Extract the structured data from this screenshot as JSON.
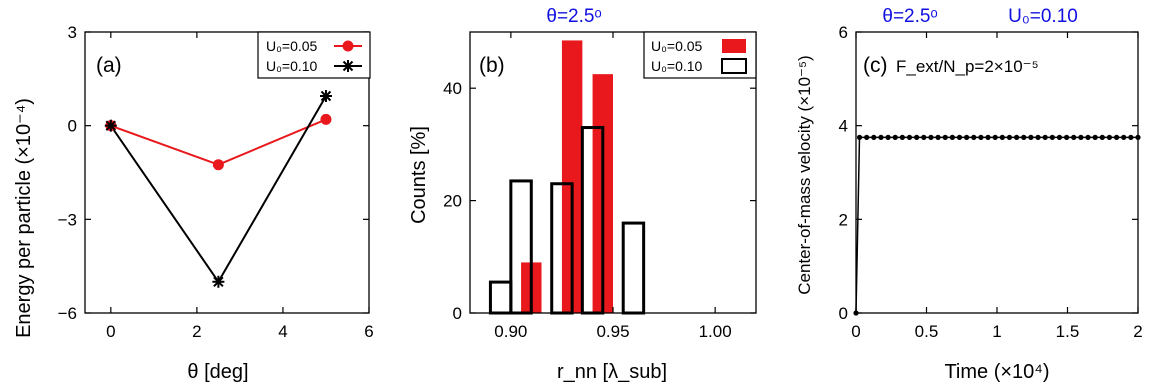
{
  "chart_data": [
    {
      "type": "line",
      "panel_label": "(a)",
      "xlabel": "θ [deg]",
      "ylabel": "Energy per particle (×10⁻⁴)",
      "xlim": [
        -0.6,
        6
      ],
      "ylim": [
        -6,
        3
      ],
      "xticks": [
        "0",
        "2",
        "4",
        "6"
      ],
      "yticks": [
        "−6",
        "−3",
        "0",
        "3"
      ],
      "legend": "top-right",
      "series": [
        {
          "name": "U₀=0.05",
          "color": "#e8181c",
          "marker": "circle",
          "x": [
            0,
            2.5,
            5
          ],
          "y": [
            0,
            -1.25,
            0.2
          ]
        },
        {
          "name": "U₀=0.10",
          "color": "#000000",
          "marker": "star",
          "x": [
            0,
            2.5,
            5
          ],
          "y": [
            0,
            -5.0,
            0.95
          ]
        }
      ]
    },
    {
      "type": "bar",
      "panel_label": "(b)",
      "title": "θ=2.5ᵒ",
      "xlabel": "r_nn [λ_sub]",
      "ylabel": "Counts [%]",
      "xlim": [
        0.88,
        1.02
      ],
      "ylim": [
        0,
        50
      ],
      "xticks": [
        "0.90",
        "0.95",
        "1.00"
      ],
      "yticks": [
        "0",
        "20",
        "40"
      ],
      "bin_width": 0.01,
      "legend": "top-right",
      "series": [
        {
          "name": "U₀=0.05",
          "style": "filled",
          "color": "#e8181c",
          "bins": [
            0.905,
            0.925,
            0.94
          ],
          "values": [
            9,
            48.5,
            42.5
          ]
        },
        {
          "name": "U₀=0.10",
          "style": "outline",
          "color": "#000000",
          "bins": [
            0.89,
            0.9,
            0.92,
            0.935,
            0.955
          ],
          "values": [
            5.5,
            23.5,
            23,
            33,
            16
          ]
        }
      ]
    },
    {
      "type": "line",
      "panel_label": "(c)",
      "title_parts": [
        "θ=2.5ᵒ",
        "U₀=0.10"
      ],
      "annotation": "F_ext/N_p=2×10⁻⁵",
      "xlabel": "Time (×10⁴)",
      "ylabel": "Center-of-mass velocity (×10⁻⁵)",
      "xlim": [
        0,
        2
      ],
      "ylim": [
        0,
        6
      ],
      "xticks": [
        "0",
        "0.5",
        "1",
        "1.5",
        "2"
      ],
      "yticks": [
        "0",
        "2",
        "4",
        "6"
      ],
      "series": [
        {
          "color": "#000000",
          "marker": "dot",
          "initial_point": [
            0,
            0
          ],
          "plateau_value": 3.75,
          "plateau_x_start": 0.025,
          "plateau_x_end": 2.0,
          "n_points": 40
        }
      ]
    }
  ]
}
